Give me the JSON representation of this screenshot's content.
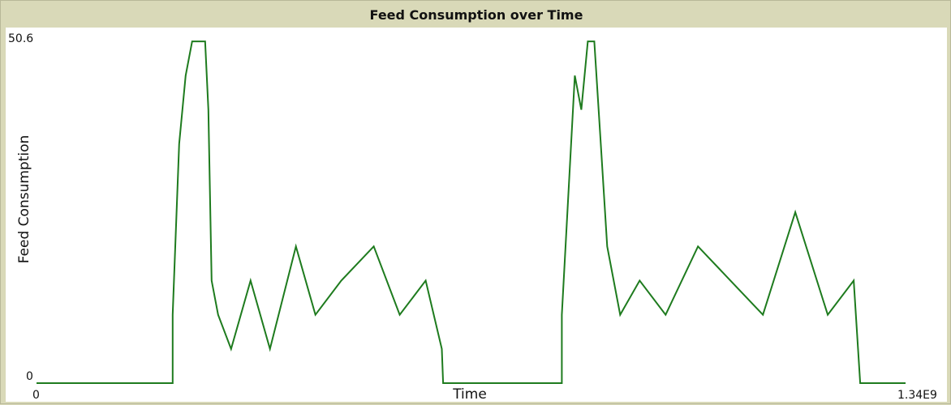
{
  "chart_data": {
    "type": "line",
    "title": "Feed Consumption over Time",
    "xlabel": "Time",
    "ylabel": "Feed Consumption",
    "xlim": [
      0,
      1340000000.0
    ],
    "ylim": [
      0,
      50.6
    ],
    "x_tick_labels": [
      "0",
      "1.34E9"
    ],
    "y_tick_labels": [
      "0",
      "50.6"
    ],
    "grid": false,
    "series": [
      {
        "color": "#1e7b1e",
        "points": [
          [
            0,
            0
          ],
          [
            210000000.0,
            0
          ],
          [
            210000000.0,
            10
          ],
          [
            220000000.0,
            35
          ],
          [
            230000000.0,
            45
          ],
          [
            240000000.0,
            50
          ],
          [
            260000000.0,
            50
          ],
          [
            265000000.0,
            40
          ],
          [
            270000000.0,
            15
          ],
          [
            280000000.0,
            10
          ],
          [
            300000000.0,
            5
          ],
          [
            330000000.0,
            15
          ],
          [
            360000000.0,
            5
          ],
          [
            400000000.0,
            20
          ],
          [
            430000000.0,
            10
          ],
          [
            470000000.0,
            15
          ],
          [
            520000000.0,
            20
          ],
          [
            560000000.0,
            10
          ],
          [
            600000000.0,
            15
          ],
          [
            625000000.0,
            5
          ],
          [
            627000000.0,
            0
          ],
          [
            810000000.0,
            0
          ],
          [
            810000000.0,
            10
          ],
          [
            830000000.0,
            45
          ],
          [
            840000000.0,
            40
          ],
          [
            850000000.0,
            50
          ],
          [
            860000000.0,
            50
          ],
          [
            870000000.0,
            35
          ],
          [
            880000000.0,
            20
          ],
          [
            900000000.0,
            10
          ],
          [
            930000000.0,
            15
          ],
          [
            970000000.0,
            10
          ],
          [
            1020000000.0,
            20
          ],
          [
            1070000000.0,
            15
          ],
          [
            1120000000.0,
            10
          ],
          [
            1170000000.0,
            25
          ],
          [
            1220000000.0,
            10
          ],
          [
            1260000000.0,
            15
          ],
          [
            1270000000.0,
            0
          ],
          [
            1340000000.0,
            0
          ]
        ]
      }
    ]
  }
}
